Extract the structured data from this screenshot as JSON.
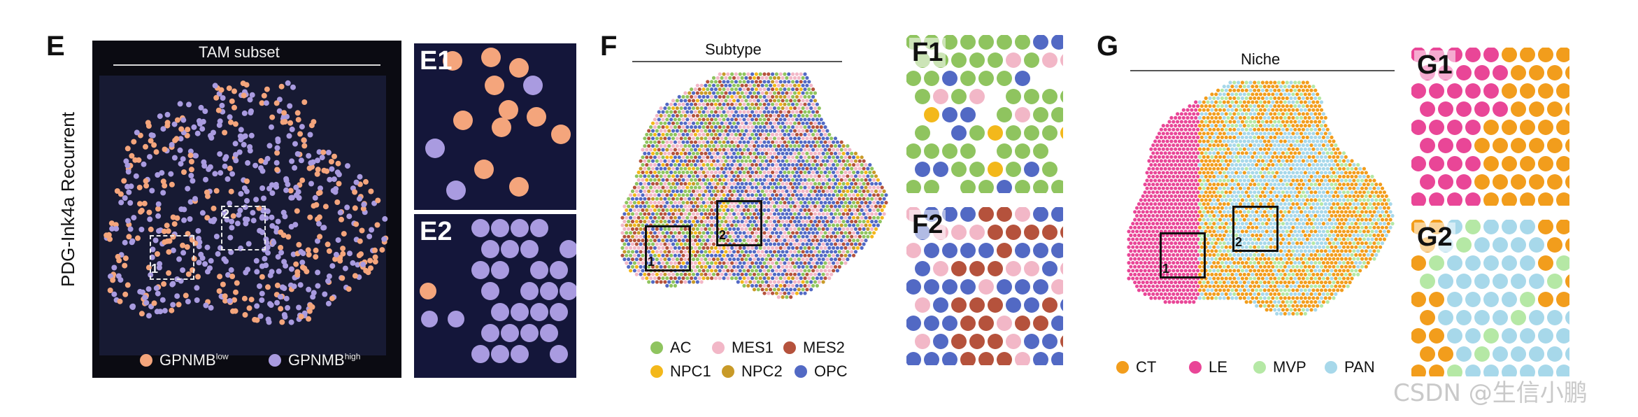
{
  "panels": {
    "E": {
      "letter": "E",
      "ylabel": "PDG-Ink4a Recurrent",
      "title": "TAM subset",
      "box1": "1",
      "box2": "2",
      "legend": [
        {
          "label": "GPNMB",
          "sup": "low",
          "color": "#f4a57c"
        },
        {
          "label": "GPNMB",
          "sup": "high",
          "color": "#a99be0"
        }
      ],
      "inset1": "E1",
      "inset2": "E2"
    },
    "F": {
      "letter": "F",
      "title": "Subtype",
      "box1": "1",
      "box2": "2",
      "legend": [
        {
          "label": "AC",
          "color": "#8fc45f"
        },
        {
          "label": "MES1",
          "color": "#f2b7c7"
        },
        {
          "label": "MES2",
          "color": "#b5523c"
        },
        {
          "label": "NPC1",
          "color": "#f3b81b"
        },
        {
          "label": "NPC2",
          "color": "#c89a28"
        },
        {
          "label": "OPC",
          "color": "#5269c4"
        }
      ],
      "inset1": "F1",
      "inset2": "F2"
    },
    "G": {
      "letter": "G",
      "title": "Niche",
      "box1": "1",
      "box2": "2",
      "legend": [
        {
          "label": "CT",
          "color": "#f29d1c"
        },
        {
          "label": "LE",
          "color": "#e94697"
        },
        {
          "label": "MVP",
          "color": "#b5e8a5"
        },
        {
          "label": "PAN",
          "color": "#a7d8ea"
        }
      ],
      "inset1": "G1",
      "inset2": "G2"
    }
  },
  "watermark": "CSDN @生信小鹏"
}
